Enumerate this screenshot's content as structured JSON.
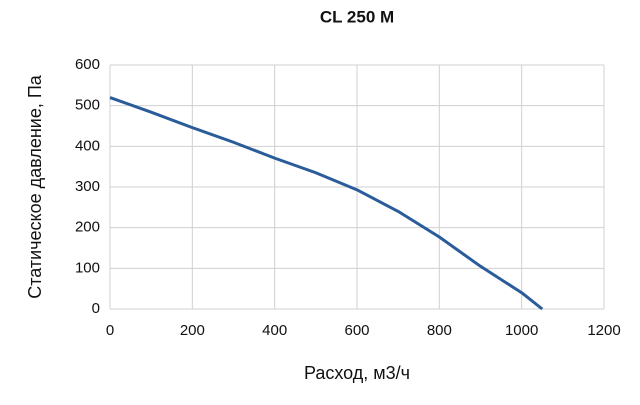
{
  "chart_data": {
    "type": "line",
    "title": "CL 250 M",
    "x_label": "Расход, м3/ч",
    "y_label": "Статическое давление, Па",
    "x": [
      0,
      100,
      200,
      300,
      400,
      500,
      600,
      700,
      800,
      900,
      1000,
      1050
    ],
    "series": [
      {
        "name": "CL 250 M",
        "color": "#2a5c9a",
        "values": [
          520,
          484,
          446,
          410,
          371,
          335,
          293,
          240,
          177,
          105,
          40,
          0
        ]
      }
    ],
    "xlim": [
      0,
      1200
    ],
    "xticks": [
      0,
      200,
      400,
      600,
      800,
      1000,
      1200
    ],
    "ylim": [
      0,
      600
    ],
    "yticks": [
      0,
      100,
      200,
      300,
      400,
      500,
      600
    ],
    "grid": true
  }
}
